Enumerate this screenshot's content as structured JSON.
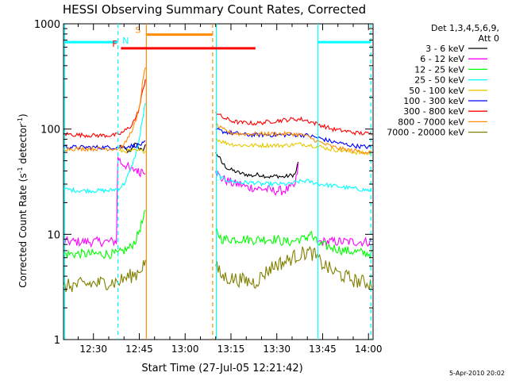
{
  "chart_data": {
    "type": "line",
    "title": "HESSI Observing Summary Count Rates, Corrected",
    "xlabel": "Start Time (27-Jul-05 12:21:42)",
    "ylabel": "Corrected Count Rate (s⁻¹ detector⁻¹)",
    "ylabel_main": "Corrected Count Rate (s",
    "ylabel_sup1": "-1",
    "ylabel_mid": " detector",
    "ylabel_sup2": "-1",
    "ylabel_end": ")",
    "x_unit": "minutes since 12:00",
    "xlim": [
      20.2,
      121.5
    ],
    "ylim": [
      1,
      1000
    ],
    "yscale": "log",
    "grid": false,
    "legend_position": "right",
    "x_ticks": [
      {
        "x": 30,
        "label": "12:30"
      },
      {
        "x": 45,
        "label": "12:45"
      },
      {
        "x": 60,
        "label": "13:00"
      },
      {
        "x": 75,
        "label": "13:15"
      },
      {
        "x": 90,
        "label": "13:30"
      },
      {
        "x": 105,
        "label": "13:45"
      },
      {
        "x": 120,
        "label": "14:00"
      }
    ],
    "y_ticks": [
      {
        "y": 1,
        "label": "1"
      },
      {
        "y": 10,
        "label": "10"
      },
      {
        "y": 100,
        "label": "100"
      },
      {
        "y": 1000,
        "label": "1000"
      }
    ],
    "legend_title_1": "Det 1,3,4,5,6,9,",
    "legend_title_2": "Att 0",
    "series": [
      {
        "name": "3 - 6 keV",
        "color": "#000000",
        "points": [
          [
            20.2,
            null
          ],
          [
            38,
            null
          ],
          [
            38.5,
            70
          ],
          [
            40,
            65
          ],
          [
            42,
            60
          ],
          [
            44,
            75
          ],
          [
            45,
            65
          ],
          [
            46,
            62
          ],
          [
            47,
            70
          ],
          [
            69.5,
            null
          ],
          [
            70,
            60
          ],
          [
            71,
            55
          ],
          [
            72,
            48
          ],
          [
            74,
            42
          ],
          [
            76,
            40
          ],
          [
            78,
            38
          ],
          [
            80,
            37
          ],
          [
            82,
            36
          ],
          [
            84,
            37
          ],
          [
            86,
            36
          ],
          [
            88,
            35
          ],
          [
            90,
            36
          ],
          [
            92,
            35
          ],
          [
            94,
            36
          ],
          [
            96,
            37
          ],
          [
            97,
            48
          ]
        ]
      },
      {
        "name": "6 - 12 keV",
        "color": "#ff00ff",
        "points": [
          [
            20.2,
            8.5
          ],
          [
            25,
            8.5
          ],
          [
            30,
            8.5
          ],
          [
            35,
            8.5
          ],
          [
            37.5,
            8.6
          ],
          [
            38,
            55
          ],
          [
            39,
            48
          ],
          [
            41,
            45
          ],
          [
            42,
            40
          ],
          [
            44,
            42
          ],
          [
            45,
            38
          ],
          [
            46,
            42
          ],
          [
            47,
            40
          ],
          [
            69.5,
            null
          ],
          [
            70,
            40
          ],
          [
            71,
            36
          ],
          [
            72,
            34
          ],
          [
            74,
            32
          ],
          [
            76,
            30
          ],
          [
            78,
            30
          ],
          [
            80,
            28
          ],
          [
            82,
            28
          ],
          [
            84,
            27
          ],
          [
            86,
            27
          ],
          [
            88,
            26
          ],
          [
            90,
            26
          ],
          [
            92,
            26
          ],
          [
            94,
            27
          ],
          [
            96,
            29
          ],
          [
            97,
            45
          ],
          [
            98,
            null
          ],
          [
            103,
            null
          ],
          [
            103.5,
            8.5
          ],
          [
            110,
            8.5
          ],
          [
            116,
            8.5
          ],
          [
            121,
            8.5
          ]
        ]
      },
      {
        "name": "12 - 25 keV",
        "color": "#00ff00",
        "points": [
          [
            20.2,
            6.5
          ],
          [
            25,
            6.5
          ],
          [
            30,
            6.5
          ],
          [
            35,
            6.5
          ],
          [
            38,
            6.5
          ],
          [
            40,
            7
          ],
          [
            42,
            7.5
          ],
          [
            44,
            9
          ],
          [
            45,
            11
          ],
          [
            46,
            13
          ],
          [
            47,
            16
          ],
          [
            69.5,
            null
          ],
          [
            70,
            11
          ],
          [
            72,
            9
          ],
          [
            75,
            9
          ],
          [
            78,
            9
          ],
          [
            80,
            9
          ],
          [
            82,
            8.8
          ],
          [
            85,
            9
          ],
          [
            88,
            9
          ],
          [
            90,
            9
          ],
          [
            92,
            8.5
          ],
          [
            95,
            8.5
          ],
          [
            97,
            9
          ],
          [
            99,
            9
          ],
          [
            100,
            9.5
          ],
          [
            101,
            10.5
          ],
          [
            102,
            9
          ],
          [
            104,
            8
          ],
          [
            108,
            7.5
          ],
          [
            112,
            7
          ],
          [
            116,
            6.8
          ],
          [
            121,
            6.5
          ]
        ]
      },
      {
        "name": "25 - 50 keV",
        "color": "#00ffff",
        "points": [
          [
            20.2,
            27
          ],
          [
            25,
            26
          ],
          [
            30,
            26
          ],
          [
            35,
            26
          ],
          [
            38,
            27
          ],
          [
            40,
            30
          ],
          [
            42,
            40
          ],
          [
            44,
            60
          ],
          [
            45,
            80
          ],
          [
            46,
            120
          ],
          [
            47,
            180
          ],
          [
            69.5,
            null
          ],
          [
            70,
            40
          ],
          [
            71,
            36
          ],
          [
            72,
            34
          ],
          [
            75,
            32
          ],
          [
            78,
            31
          ],
          [
            80,
            31
          ],
          [
            83,
            31
          ],
          [
            85,
            30
          ],
          [
            88,
            30
          ],
          [
            90,
            30
          ],
          [
            92,
            30
          ],
          [
            94,
            30
          ],
          [
            96,
            31
          ],
          [
            98,
            32
          ],
          [
            100,
            32
          ],
          [
            102,
            31
          ],
          [
            104,
            30
          ],
          [
            108,
            29
          ],
          [
            112,
            28
          ],
          [
            116,
            27
          ],
          [
            121,
            26
          ]
        ]
      },
      {
        "name": "50 - 100 keV",
        "color": "#e6c800",
        "points": [
          [
            20.2,
            null
          ],
          [
            38,
            null
          ],
          [
            38.5,
            62
          ],
          [
            40,
            62
          ],
          [
            42,
            62
          ],
          [
            44,
            62
          ],
          [
            46,
            62
          ],
          [
            47,
            62
          ],
          [
            69.5,
            null
          ],
          [
            70,
            82
          ],
          [
            72,
            76
          ],
          [
            75,
            72
          ],
          [
            78,
            70
          ],
          [
            80,
            70
          ],
          [
            83,
            70
          ],
          [
            85,
            70
          ],
          [
            88,
            70
          ],
          [
            90,
            70
          ],
          [
            93,
            70
          ],
          [
            95,
            71
          ],
          [
            98,
            72
          ],
          [
            100,
            71
          ],
          [
            104,
            68
          ],
          [
            108,
            64
          ],
          [
            112,
            62
          ],
          [
            116,
            60
          ],
          [
            121,
            58
          ]
        ]
      },
      {
        "name": "100 - 300 keV",
        "color": "#0000ff",
        "points": [
          [
            20.2,
            68
          ],
          [
            25,
            67
          ],
          [
            30,
            67
          ],
          [
            35,
            67
          ],
          [
            38,
            67
          ],
          [
            40,
            68
          ],
          [
            42,
            69
          ],
          [
            44,
            70
          ],
          [
            46,
            72
          ],
          [
            47,
            74
          ],
          [
            69.5,
            null
          ],
          [
            70,
            100
          ],
          [
            72,
            95
          ],
          [
            75,
            92
          ],
          [
            78,
            90
          ],
          [
            80,
            88
          ],
          [
            83,
            88
          ],
          [
            85,
            88
          ],
          [
            88,
            88
          ],
          [
            90,
            88
          ],
          [
            93,
            88
          ],
          [
            95,
            88
          ],
          [
            98,
            88
          ],
          [
            100,
            87
          ],
          [
            104,
            82
          ],
          [
            108,
            76
          ],
          [
            112,
            72
          ],
          [
            116,
            69
          ],
          [
            121,
            67
          ]
        ]
      },
      {
        "name": "300 - 800 keV",
        "color": "#ff0000",
        "points": [
          [
            20.2,
            90
          ],
          [
            25,
            88
          ],
          [
            30,
            87
          ],
          [
            35,
            87
          ],
          [
            38,
            88
          ],
          [
            40,
            95
          ],
          [
            42,
            105
          ],
          [
            44,
            130
          ],
          [
            45,
            160
          ],
          [
            46,
            220
          ],
          [
            47,
            300
          ],
          [
            69.5,
            null
          ],
          [
            70,
            145
          ],
          [
            72,
            130
          ],
          [
            75,
            120
          ],
          [
            78,
            115
          ],
          [
            80,
            115
          ],
          [
            83,
            113
          ],
          [
            85,
            115
          ],
          [
            88,
            118
          ],
          [
            90,
            120
          ],
          [
            93,
            122
          ],
          [
            95,
            124
          ],
          [
            98,
            124
          ],
          [
            100,
            120
          ],
          [
            104,
            110
          ],
          [
            108,
            100
          ],
          [
            112,
            96
          ],
          [
            116,
            92
          ],
          [
            121,
            90
          ]
        ]
      },
      {
        "name": "800 - 7000 keV",
        "color": "#ff8c00",
        "points": [
          [
            20.2,
            65
          ],
          [
            25,
            65
          ],
          [
            30,
            65
          ],
          [
            35,
            65
          ],
          [
            38,
            65
          ],
          [
            40,
            70
          ],
          [
            42,
            90
          ],
          [
            44,
            120
          ],
          [
            45,
            160
          ],
          [
            46,
            260
          ],
          [
            47,
            400
          ],
          [
            69.5,
            null
          ],
          [
            70,
            110
          ],
          [
            72,
            100
          ],
          [
            75,
            92
          ],
          [
            78,
            90
          ],
          [
            80,
            90
          ],
          [
            83,
            90
          ],
          [
            85,
            90
          ],
          [
            88,
            90
          ],
          [
            90,
            90
          ],
          [
            93,
            90
          ],
          [
            95,
            90
          ],
          [
            98,
            88
          ],
          [
            100,
            85
          ],
          [
            104,
            75
          ],
          [
            108,
            68
          ],
          [
            112,
            64
          ],
          [
            116,
            62
          ],
          [
            121,
            60
          ]
        ]
      },
      {
        "name": "7000 - 20000 keV",
        "color": "#808000",
        "points": [
          [
            20.2,
            3.2
          ],
          [
            25,
            3.3
          ],
          [
            30,
            3.4
          ],
          [
            35,
            3.5
          ],
          [
            38,
            3.5
          ],
          [
            40,
            3.8
          ],
          [
            42,
            4
          ],
          [
            44,
            4.2
          ],
          [
            46,
            5
          ],
          [
            47,
            5.6
          ],
          [
            69.5,
            null
          ],
          [
            70,
            5
          ],
          [
            72,
            4
          ],
          [
            75,
            3.8
          ],
          [
            78,
            3.7
          ],
          [
            80,
            3.6
          ],
          [
            83,
            3.5
          ],
          [
            85,
            4
          ],
          [
            88,
            4.8
          ],
          [
            90,
            5.2
          ],
          [
            93,
            5.5
          ],
          [
            95,
            6
          ],
          [
            98,
            6.5
          ],
          [
            100,
            6.8
          ],
          [
            102,
            6.5
          ],
          [
            104,
            5.5
          ],
          [
            106,
            5
          ],
          [
            108,
            4.5
          ],
          [
            112,
            4
          ],
          [
            116,
            3.6
          ],
          [
            121,
            3.4
          ]
        ]
      }
    ],
    "vertical_lines": [
      {
        "x": 20.6,
        "color": "#00ffff",
        "style": "solid"
      },
      {
        "x": 38.0,
        "color": "#00ffff",
        "style": "dashed"
      },
      {
        "x": 47.3,
        "color": "#ff8c00",
        "style": "solid"
      },
      {
        "x": 69.0,
        "color": "#ff8c00",
        "style": "dashed"
      },
      {
        "x": 70.2,
        "color": "#00ffff",
        "style": "solid"
      },
      {
        "x": 103.4,
        "color": "#00ffff",
        "style": "solid"
      },
      {
        "x": 120.8,
        "color": "#00ffff",
        "style": "dashed"
      }
    ],
    "interval_bars": [
      {
        "label": "N",
        "color": "#00ffff",
        "x0": 20.6,
        "x1": 38.0,
        "y": 670,
        "label_x": 39.5,
        "label_side": "right"
      },
      {
        "label": "N",
        "color": "#00ffff",
        "x0": 103.4,
        "x1": 120.8,
        "y": 670,
        "label_x": null,
        "label_side": "none"
      },
      {
        "label": "S",
        "color": "#ff8c00",
        "x0": 47.3,
        "x1": 69.0,
        "y": 790,
        "label_x": 45.5,
        "label_side": "left"
      },
      {
        "label": "F",
        "color": "#ff0000",
        "x0": 39.0,
        "x1": 83.0,
        "y": 585,
        "label_x": 37.8,
        "label_side": "left"
      }
    ],
    "timestamp": "5-Apr-2010 20:02"
  }
}
